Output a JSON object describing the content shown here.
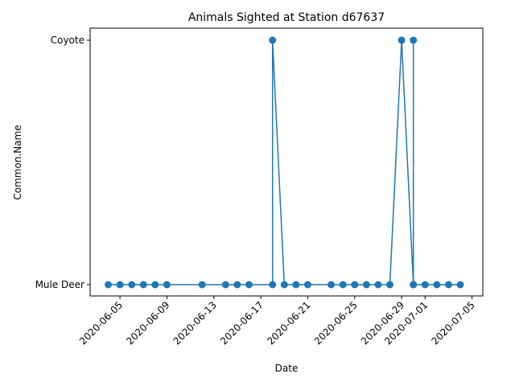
{
  "chart_data": {
    "type": "line",
    "title": "Animals Sighted at Station d67637",
    "xlabel": "Date",
    "ylabel": "Common.Name",
    "categories": [
      "Mule Deer",
      "Coyote"
    ],
    "x_range": [
      "2020-06-02T11:00",
      "2020-07-05T22:00"
    ],
    "x_ticks": [
      "2020-06-05",
      "2020-06-09",
      "2020-06-13",
      "2020-06-17",
      "2020-06-21",
      "2020-06-25",
      "2020-06-29",
      "2020-07-01",
      "2020-07-05"
    ],
    "series": [
      {
        "color": "#1f77b4",
        "points": [
          [
            "2020-06-04",
            "Mule Deer"
          ],
          [
            "2020-06-05",
            "Mule Deer"
          ],
          [
            "2020-06-06",
            "Mule Deer"
          ],
          [
            "2020-06-07",
            "Mule Deer"
          ],
          [
            "2020-06-08",
            "Mule Deer"
          ],
          [
            "2020-06-09",
            "Mule Deer"
          ],
          [
            "2020-06-12",
            "Mule Deer"
          ],
          [
            "2020-06-14",
            "Mule Deer"
          ],
          [
            "2020-06-15",
            "Mule Deer"
          ],
          [
            "2020-06-16",
            "Mule Deer"
          ],
          [
            "2020-06-18",
            "Mule Deer"
          ],
          [
            "2020-06-18",
            "Coyote"
          ],
          [
            "2020-06-19",
            "Mule Deer"
          ],
          [
            "2020-06-20",
            "Mule Deer"
          ],
          [
            "2020-06-21",
            "Mule Deer"
          ],
          [
            "2020-06-23",
            "Mule Deer"
          ],
          [
            "2020-06-24",
            "Mule Deer"
          ],
          [
            "2020-06-25",
            "Mule Deer"
          ],
          [
            "2020-06-26",
            "Mule Deer"
          ],
          [
            "2020-06-27",
            "Mule Deer"
          ],
          [
            "2020-06-28",
            "Mule Deer"
          ],
          [
            "2020-06-29",
            "Coyote"
          ],
          [
            "2020-06-30",
            "Mule Deer"
          ],
          [
            "2020-06-30",
            "Coyote"
          ],
          [
            "2020-06-30",
            "Mule Deer"
          ],
          [
            "2020-07-01",
            "Mule Deer"
          ],
          [
            "2020-07-02",
            "Mule Deer"
          ],
          [
            "2020-07-03",
            "Mule Deer"
          ],
          [
            "2020-07-04",
            "Mule Deer"
          ]
        ]
      }
    ]
  }
}
